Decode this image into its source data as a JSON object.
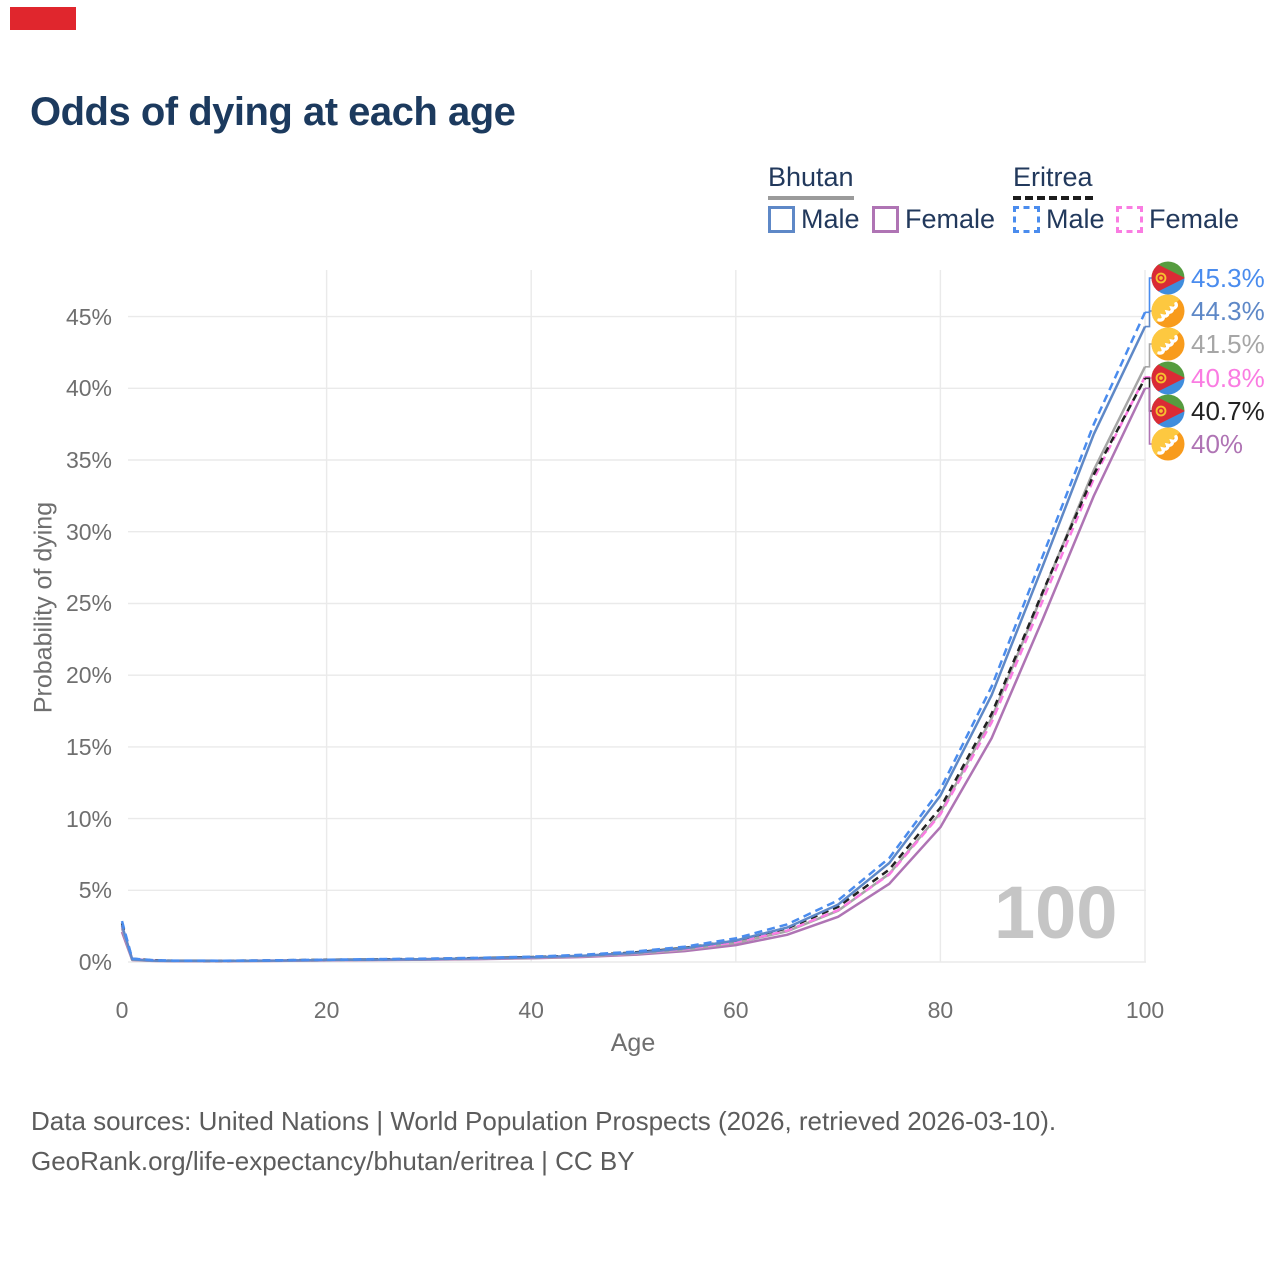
{
  "indicator": {
    "color": "#e0262d"
  },
  "title": "Odds of dying at each age",
  "legend": {
    "groups": [
      {
        "name": "Bhutan",
        "line_style": "solid",
        "underline_color": "#9b9b9b",
        "items": [
          {
            "label": "Male",
            "color": "#5e88c7",
            "dashed": false
          },
          {
            "label": "Female",
            "color": "#af74b4",
            "dashed": false
          }
        ]
      },
      {
        "name": "Eritrea",
        "line_style": "dashed",
        "underline_color": "#1c1c1c",
        "items": [
          {
            "label": "Male",
            "color": "#4a8cee",
            "dashed": true
          },
          {
            "label": "Female",
            "color": "#fa7ce2",
            "dashed": true
          }
        ]
      }
    ]
  },
  "axes": {
    "y_label": "Probability of dying",
    "x_label": "Age",
    "y_ticks": [
      {
        "pct": 0,
        "label": "0%"
      },
      {
        "pct": 5,
        "label": "5%"
      },
      {
        "pct": 10,
        "label": "10%"
      },
      {
        "pct": 15,
        "label": "15%"
      },
      {
        "pct": 20,
        "label": "20%"
      },
      {
        "pct": 25,
        "label": "25%"
      },
      {
        "pct": 30,
        "label": "30%"
      },
      {
        "pct": 35,
        "label": "35%"
      },
      {
        "pct": 40,
        "label": "40%"
      },
      {
        "pct": 45,
        "label": "45%"
      }
    ],
    "x_ticks": [
      {
        "age": 0,
        "label": "0"
      },
      {
        "age": 20,
        "label": "20"
      },
      {
        "age": 40,
        "label": "40"
      },
      {
        "age": 60,
        "label": "60"
      },
      {
        "age": 80,
        "label": "80"
      },
      {
        "age": 100,
        "label": "100"
      }
    ]
  },
  "watermark": "100",
  "chart_data": {
    "type": "line",
    "xlabel": "Age",
    "ylabel": "Probability of dying",
    "xlim": [
      0,
      100
    ],
    "ylim": [
      0,
      47
    ],
    "grid": true,
    "x": [
      0,
      1,
      3,
      5,
      10,
      15,
      20,
      25,
      30,
      35,
      40,
      45,
      50,
      55,
      60,
      65,
      70,
      75,
      80,
      85,
      90,
      95,
      100
    ],
    "series": [
      {
        "id": "bhutan-female",
        "name": "Bhutan Female",
        "color": "#af74b4",
        "dash": "",
        "values": [
          2.1,
          0.14,
          0.08,
          0.06,
          0.06,
          0.08,
          0.11,
          0.14,
          0.17,
          0.2,
          0.26,
          0.35,
          0.5,
          0.76,
          1.18,
          1.9,
          3.15,
          5.45,
          9.4,
          15.6,
          23.9,
          32.5,
          40.0
        ]
      },
      {
        "id": "bhutan-all",
        "name": "Bhutan (all)",
        "color": "#a6a6a6",
        "dash": "",
        "values": [
          2.35,
          0.16,
          0.09,
          0.07,
          0.07,
          0.09,
          0.12,
          0.15,
          0.18,
          0.22,
          0.28,
          0.39,
          0.56,
          0.85,
          1.33,
          2.14,
          3.58,
          6.15,
          10.4,
          17.0,
          25.7,
          34.3,
          41.5
        ]
      },
      {
        "id": "eritrea-female",
        "name": "Eritrea Female",
        "color": "#fa7ce2",
        "dash": "8 5",
        "values": [
          2.5,
          0.2,
          0.11,
          0.08,
          0.08,
          0.1,
          0.13,
          0.16,
          0.2,
          0.24,
          0.31,
          0.42,
          0.6,
          0.9,
          1.38,
          2.18,
          3.62,
          6.1,
          10.3,
          16.7,
          25.2,
          33.7,
          40.8
        ]
      },
      {
        "id": "eritrea-all",
        "name": "Eritrea (all)",
        "color": "#222222",
        "dash": "7 5",
        "values": [
          2.7,
          0.22,
          0.12,
          0.09,
          0.08,
          0.11,
          0.15,
          0.18,
          0.22,
          0.27,
          0.34,
          0.46,
          0.66,
          0.98,
          1.5,
          2.35,
          3.85,
          6.45,
          10.75,
          17.3,
          25.8,
          34.0,
          40.7
        ]
      },
      {
        "id": "bhutan-male",
        "name": "Bhutan Male",
        "color": "#5e88c7",
        "dash": "",
        "values": [
          2.55,
          0.18,
          0.1,
          0.08,
          0.08,
          0.1,
          0.14,
          0.17,
          0.2,
          0.25,
          0.32,
          0.44,
          0.63,
          0.95,
          1.5,
          2.4,
          4.0,
          6.9,
          11.6,
          18.6,
          27.6,
          36.8,
          44.3
        ]
      },
      {
        "id": "eritrea-male",
        "name": "Eritrea Male",
        "color": "#4a8cee",
        "dash": "8 5",
        "values": [
          2.85,
          0.24,
          0.13,
          0.1,
          0.09,
          0.12,
          0.16,
          0.2,
          0.24,
          0.29,
          0.37,
          0.5,
          0.72,
          1.07,
          1.65,
          2.62,
          4.3,
          7.25,
          12.05,
          19.2,
          28.3,
          37.5,
          45.3
        ]
      }
    ]
  },
  "end_labels": [
    {
      "flag": "eritrea",
      "series": "eritrea-male",
      "text": "45.3%",
      "color": "#4a8cee",
      "value": 45.3
    },
    {
      "flag": "bhutan",
      "series": "bhutan-male",
      "text": "44.3%",
      "color": "#5e88c7",
      "value": 44.3
    },
    {
      "flag": "bhutan",
      "series": "bhutan-all",
      "text": "41.5%",
      "color": "#a6a6a6",
      "value": 41.5
    },
    {
      "flag": "eritrea",
      "series": "eritrea-female",
      "text": "40.8%",
      "color": "#fa7ce2",
      "value": 40.8
    },
    {
      "flag": "eritrea",
      "series": "eritrea-all",
      "text": "40.7%",
      "color": "#222222",
      "value": 40.7
    },
    {
      "flag": "bhutan",
      "series": "bhutan-female",
      "text": "40%",
      "color": "#af74b4",
      "value": 40.0
    }
  ],
  "footer": {
    "line1": "Data sources: United Nations | World Population Prospects (2026, retrieved 2026-03-10).",
    "line2": "GeoRank.org/life-expectancy/bhutan/eritrea | CC BY"
  }
}
